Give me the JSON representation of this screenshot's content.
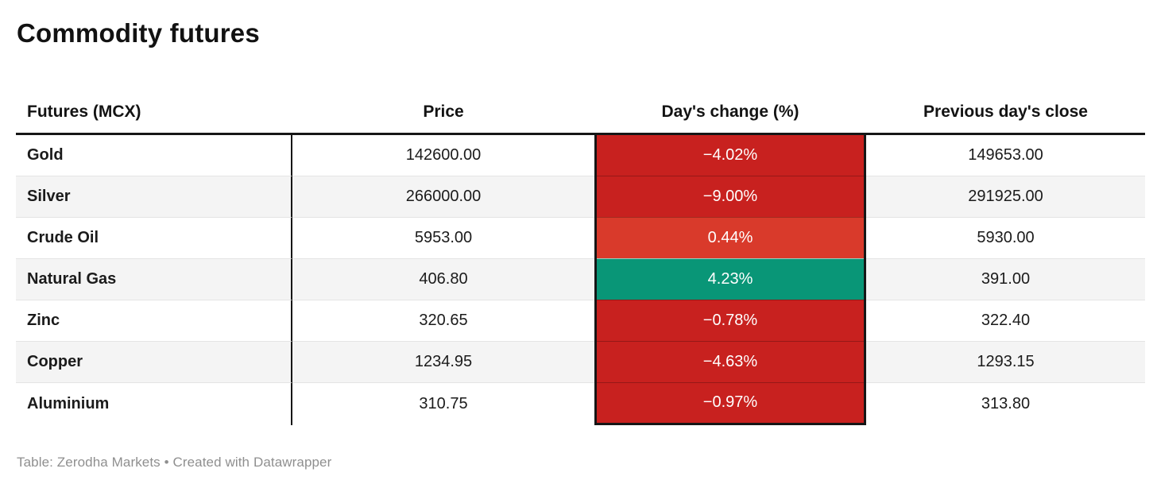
{
  "title": "Commodity futures",
  "table": {
    "columns": [
      {
        "label": "Futures (MCX)"
      },
      {
        "label": "Price"
      },
      {
        "label": "Day's change (%)"
      },
      {
        "label": "Previous day's close"
      }
    ],
    "rows": [
      {
        "name": "Gold",
        "price": "142600.00",
        "change": "−4.02%",
        "prev_close": "149653.00",
        "change_bg": "#c8211f"
      },
      {
        "name": "Silver",
        "price": "266000.00",
        "change": "−9.00%",
        "prev_close": "291925.00",
        "change_bg": "#c8211f"
      },
      {
        "name": "Crude Oil",
        "price": "5953.00",
        "change": "0.44%",
        "prev_close": "5930.00",
        "change_bg": "#d93a2b"
      },
      {
        "name": "Natural Gas",
        "price": "406.80",
        "change": "4.23%",
        "prev_close": "391.00",
        "change_bg": "#099677"
      },
      {
        "name": "Zinc",
        "price": "320.65",
        "change": "−0.78%",
        "prev_close": "322.40",
        "change_bg": "#c8211f"
      },
      {
        "name": "Copper",
        "price": "1234.95",
        "change": "−4.63%",
        "prev_close": "1293.15",
        "change_bg": "#c8211f"
      },
      {
        "name": "Aluminium",
        "price": "310.75",
        "change": "−0.97%",
        "prev_close": "313.80",
        "change_bg": "#c8211f"
      }
    ]
  },
  "footer": "Table: Zerodha Markets • Created with Datawrapper",
  "colors": {
    "negative_red": "#c8211f",
    "mild_positive_red": "#d93a2b",
    "positive_green": "#099677",
    "alt_row_bg": "#f4f4f4",
    "border_black": "#161616",
    "footer_gray": "#8f8f8f"
  },
  "chart_data": {
    "type": "table",
    "title": "Commodity futures",
    "columns": [
      "Futures (MCX)",
      "Price",
      "Day's change (%)",
      "Previous day's close"
    ],
    "rows": [
      [
        "Gold",
        142600.0,
        -4.02,
        149653.0
      ],
      [
        "Silver",
        266000.0,
        -9.0,
        291925.0
      ],
      [
        "Crude Oil",
        5953.0,
        0.44,
        5930.0
      ],
      [
        "Natural Gas",
        406.8,
        4.23,
        391.0
      ],
      [
        "Zinc",
        320.65,
        -0.78,
        322.4
      ],
      [
        "Copper",
        1234.95,
        -4.63,
        1293.15
      ],
      [
        "Aluminium",
        310.75,
        -0.97,
        313.8
      ]
    ],
    "notes": "Day's change cells are color-coded: strong negatives dark red #c8211f, small positive 0.44% lighter red #d93a2b, strong positive 4.23% green #099677; white cell text",
    "source": "Table: Zerodha Markets • Created with Datawrapper"
  }
}
